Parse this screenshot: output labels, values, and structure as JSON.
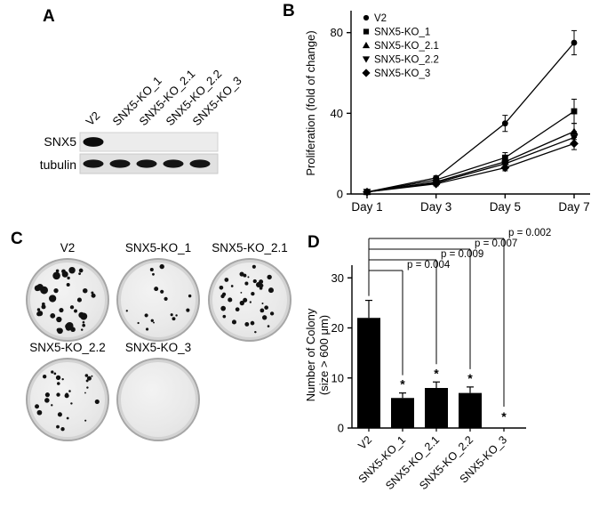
{
  "figure": {
    "panel_labels": [
      "A",
      "B",
      "C",
      "D"
    ]
  },
  "panel_a": {
    "lane_labels": [
      "V2",
      "SNX5-KO_1",
      "SNX5-KO_2.1",
      "SNX5-KO_2.2",
      "SNX5-KO_3"
    ],
    "row_labels": [
      "SNX5",
      "tubulin"
    ],
    "snx5_bands": [
      1,
      0,
      0,
      0,
      0
    ],
    "tubulin_bands": [
      1,
      1,
      1,
      1,
      1
    ]
  },
  "panel_c": {
    "dishes": [
      {
        "label": "V2",
        "colonies": 40
      },
      {
        "label": "SNX5-KO_1",
        "colonies": 17
      },
      {
        "label": "SNX5-KO_2.1",
        "colonies": 36
      },
      {
        "label": "SNX5-KO_2.2",
        "colonies": 28
      },
      {
        "label": "SNX5-KO_3",
        "colonies": 0
      }
    ]
  },
  "chart_data": [
    {
      "type": "line",
      "panel": "B",
      "title": "",
      "x": [
        "Day 1",
        "Day 3",
        "Day 5",
        "Day 7"
      ],
      "series": [
        {
          "name": "V2",
          "marker": "circle",
          "values": [
            1,
            8,
            35,
            75
          ],
          "errors": [
            0,
            1,
            4,
            6
          ]
        },
        {
          "name": "SNX5-KO_1",
          "marker": "square",
          "values": [
            1,
            7,
            18,
            41
          ],
          "errors": [
            0,
            1,
            2.5,
            6
          ]
        },
        {
          "name": "SNX5-KO_2.1",
          "marker": "triangle-up",
          "values": [
            1,
            6,
            16,
            31
          ],
          "errors": [
            0,
            1,
            1.5,
            4
          ]
        },
        {
          "name": "SNX5-KO_2.2",
          "marker": "triangle-down",
          "values": [
            1,
            5.5,
            15,
            28
          ],
          "errors": [
            0,
            1,
            1.5,
            3
          ]
        },
        {
          "name": "SNX5-KO_3",
          "marker": "diamond",
          "values": [
            1,
            5,
            13,
            25
          ],
          "errors": [
            0,
            1,
            1.5,
            3
          ]
        }
      ],
      "xlabel": "",
      "ylabel": "Proliferation (fold of change)",
      "yticks": [
        0,
        40,
        80
      ],
      "ylim": [
        0,
        90
      ],
      "grid": false,
      "legend_position": "upper-left"
    },
    {
      "type": "bar",
      "panel": "D",
      "title": "",
      "categories": [
        "V2",
        "SNX5-KO_1",
        "SNX5-KO_2.1",
        "SNX5-KO_2.2",
        "SNX5-KO_3"
      ],
      "values": [
        22,
        6,
        8,
        7,
        0
      ],
      "errors": [
        3.5,
        1,
        1.2,
        1.2,
        0
      ],
      "asterisk": [
        false,
        true,
        true,
        true,
        true
      ],
      "asterisk_symbol": "*",
      "xlabel": "",
      "ylabel": "Number of Colony (size > 600 μm)",
      "ylabel_lines": [
        "Number of Colony",
        "(size > 600 μm)"
      ],
      "yticks": [
        0,
        10,
        20,
        30
      ],
      "ylim": [
        0,
        32
      ],
      "grid": false,
      "bar_color": "#000000",
      "comparisons": [
        {
          "label": "p = 0.004",
          "to": 1
        },
        {
          "label": "p = 0.009",
          "to": 2
        },
        {
          "label": "p = 0.007",
          "to": 3
        },
        {
          "label": "p = 0.002",
          "to": 4
        }
      ]
    }
  ]
}
